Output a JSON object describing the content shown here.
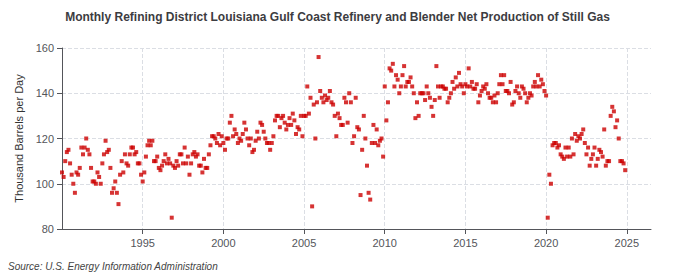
{
  "chart_data": {
    "type": "scatter",
    "title": "Monthly Refining District Louisiana Gulf Coast Refinery and Blender Net Production of Still Gas",
    "ylabel": "Thousand Barrels per Day",
    "source": "Source: U.S. Energy Information Administration",
    "color": "#CC0000",
    "marker": "square",
    "grid": true,
    "xlim": [
      1990.0,
      2026.5
    ],
    "xticks": [
      1995,
      2000,
      2005,
      2010,
      2015,
      2020,
      2025
    ],
    "ylim": [
      80,
      160
    ],
    "yticks": [
      80,
      100,
      120,
      140,
      160
    ],
    "x": [
      1990.0,
      1990.1,
      1990.2,
      1990.3,
      1990.4,
      1990.5,
      1990.6,
      1990.7,
      1990.8,
      1990.9,
      1991.0,
      1991.1,
      1991.2,
      1991.3,
      1991.4,
      1991.5,
      1991.6,
      1991.7,
      1991.8,
      1991.9,
      1992.0,
      1992.1,
      1992.2,
      1992.3,
      1992.4,
      1992.5,
      1992.6,
      1992.7,
      1992.8,
      1992.9,
      1993.0,
      1993.1,
      1993.2,
      1993.3,
      1993.4,
      1993.5,
      1993.6,
      1993.7,
      1993.8,
      1993.9,
      1994.0,
      1994.1,
      1994.2,
      1994.3,
      1994.4,
      1994.5,
      1994.6,
      1994.7,
      1994.8,
      1994.9,
      1995.0,
      1995.1,
      1995.2,
      1995.3,
      1995.4,
      1995.5,
      1995.6,
      1995.7,
      1995.8,
      1995.9,
      1996.0,
      1996.1,
      1996.2,
      1996.3,
      1996.4,
      1996.5,
      1996.6,
      1996.7,
      1996.8,
      1996.9,
      1997.0,
      1997.1,
      1997.2,
      1997.3,
      1997.4,
      1997.5,
      1997.6,
      1997.7,
      1997.8,
      1997.9,
      1998.0,
      1998.1,
      1998.2,
      1998.3,
      1998.4,
      1998.5,
      1998.6,
      1998.7,
      1998.8,
      1998.9,
      1999.0,
      1999.1,
      1999.2,
      1999.3,
      1999.4,
      1999.5,
      1999.6,
      1999.7,
      1999.8,
      1999.9,
      2000.0,
      2000.1,
      2000.2,
      2000.3,
      2000.4,
      2000.5,
      2000.6,
      2000.7,
      2000.8,
      2000.9,
      2001.0,
      2001.1,
      2001.2,
      2001.3,
      2001.4,
      2001.5,
      2001.6,
      2001.7,
      2001.8,
      2001.9,
      2002.0,
      2002.1,
      2002.2,
      2002.3,
      2002.4,
      2002.5,
      2002.6,
      2002.7,
      2002.8,
      2002.9,
      2003.0,
      2003.1,
      2003.2,
      2003.3,
      2003.4,
      2003.5,
      2003.6,
      2003.7,
      2003.8,
      2003.9,
      2004.0,
      2004.1,
      2004.2,
      2004.3,
      2004.4,
      2004.5,
      2004.6,
      2004.7,
      2004.8,
      2004.9,
      2005.0,
      2005.1,
      2005.2,
      2005.3,
      2005.4,
      2005.5,
      2005.6,
      2005.7,
      2005.8,
      2005.9,
      2006.0,
      2006.1,
      2006.2,
      2006.3,
      2006.4,
      2006.5,
      2006.6,
      2006.7,
      2006.8,
      2006.9,
      2007.0,
      2007.1,
      2007.2,
      2007.3,
      2007.4,
      2007.5,
      2007.6,
      2007.7,
      2007.8,
      2007.9,
      2008.0,
      2008.1,
      2008.2,
      2008.3,
      2008.4,
      2008.5,
      2008.6,
      2008.7,
      2008.8,
      2008.9,
      2009.0,
      2009.1,
      2009.2,
      2009.3,
      2009.4,
      2009.5,
      2009.6,
      2009.7,
      2009.8,
      2009.9,
      2010.0,
      2010.1,
      2010.2,
      2010.3,
      2010.4,
      2010.5,
      2010.6,
      2010.7,
      2010.8,
      2010.9,
      2011.0,
      2011.1,
      2011.2,
      2011.3,
      2011.4,
      2011.5,
      2011.6,
      2011.7,
      2011.8,
      2011.9,
      2012.0,
      2012.1,
      2012.2,
      2012.3,
      2012.4,
      2012.5,
      2012.6,
      2012.7,
      2012.8,
      2012.9,
      2013.0,
      2013.1,
      2013.2,
      2013.3,
      2013.4,
      2013.5,
      2013.6,
      2013.7,
      2013.8,
      2013.9,
      2014.0,
      2014.1,
      2014.2,
      2014.3,
      2014.4,
      2014.5,
      2014.6,
      2014.7,
      2014.8,
      2014.9,
      2015.0,
      2015.1,
      2015.2,
      2015.3,
      2015.4,
      2015.5,
      2015.6,
      2015.7,
      2015.8,
      2015.9,
      2016.0,
      2016.1,
      2016.2,
      2016.3,
      2016.4,
      2016.5,
      2016.6,
      2016.7,
      2016.8,
      2016.9,
      2017.0,
      2017.1,
      2017.2,
      2017.3,
      2017.4,
      2017.5,
      2017.6,
      2017.7,
      2017.8,
      2017.9,
      2018.0,
      2018.1,
      2018.2,
      2018.3,
      2018.4,
      2018.5,
      2018.6,
      2018.7,
      2018.8,
      2018.9,
      2019.0,
      2019.1,
      2019.2,
      2019.3,
      2019.4,
      2019.5,
      2019.6,
      2019.7,
      2019.8,
      2019.9,
      2020.0,
      2020.1,
      2020.2,
      2020.3,
      2020.4,
      2020.5,
      2020.6,
      2020.7,
      2020.8,
      2020.9,
      2021.0,
      2021.1,
      2021.2,
      2021.3,
      2021.4,
      2021.5,
      2021.6,
      2021.7,
      2021.8,
      2021.9,
      2022.0,
      2022.1,
      2022.2,
      2022.3,
      2022.4,
      2022.5,
      2022.6,
      2022.7,
      2022.8,
      2022.9,
      2023.0,
      2023.1,
      2023.2,
      2023.3,
      2023.4,
      2023.5,
      2023.6,
      2023.7,
      2023.8,
      2023.9,
      2024.0,
      2024.1,
      2024.2,
      2024.3,
      2024.4,
      2024.5,
      2024.6,
      2024.7,
      2024.8,
      2024.9
    ],
    "values": [
      105,
      103,
      110,
      114,
      115,
      109,
      104,
      100,
      96,
      105,
      104,
      107,
      116,
      113,
      116,
      120,
      115,
      113,
      107,
      101,
      101,
      100,
      105,
      103,
      100,
      109,
      113,
      119,
      114,
      115,
      107,
      96,
      98,
      101,
      96,
      91,
      104,
      110,
      105,
      113,
      109,
      108,
      113,
      116,
      116,
      113,
      114,
      109,
      109,
      104,
      101,
      105,
      112,
      117,
      119,
      117,
      119,
      110,
      110,
      112,
      107,
      106,
      108,
      110,
      113,
      109,
      111,
      109,
      85,
      108,
      107,
      110,
      108,
      113,
      113,
      109,
      116,
      109,
      112,
      104,
      109,
      113,
      114,
      112,
      113,
      108,
      108,
      105,
      111,
      107,
      107,
      113,
      117,
      121,
      121,
      120,
      118,
      122,
      117,
      121,
      118,
      115,
      120,
      120,
      127,
      130,
      121,
      124,
      122,
      118,
      120,
      119,
      122,
      127,
      124,
      120,
      117,
      120,
      114,
      115,
      119,
      123,
      120,
      127,
      126,
      123,
      120,
      118,
      118,
      115,
      118,
      121,
      128,
      130,
      130,
      125,
      129,
      130,
      127,
      124,
      126,
      129,
      126,
      131,
      128,
      122,
      125,
      124,
      130,
      121,
      130,
      130,
      143,
      131,
      138,
      90,
      135,
      120,
      136,
      156,
      141,
      138,
      136,
      139,
      137,
      138,
      141,
      136,
      135,
      130,
      121,
      131,
      129,
      126,
      126,
      138,
      136,
      127,
      140,
      136,
      118,
      121,
      138,
      125,
      124,
      95,
      115,
      130,
      120,
      108,
      96,
      93,
      118,
      126,
      118,
      124,
      117,
      119,
      120,
      112,
      143,
      128,
      136,
      151,
      150,
      153,
      143,
      148,
      146,
      140,
      143,
      148,
      152,
      143,
      145,
      145,
      147,
      143,
      140,
      129,
      136,
      130,
      140,
      140,
      140,
      137,
      143,
      140,
      138,
      134,
      130,
      137,
      152,
      143,
      138,
      143,
      143,
      142,
      142,
      136,
      138,
      140,
      145,
      142,
      147,
      143,
      149,
      144,
      143,
      140,
      144,
      143,
      151,
      143,
      145,
      142,
      142,
      144,
      136,
      139,
      141,
      143,
      142,
      144,
      140,
      138,
      138,
      136,
      139,
      136,
      140,
      144,
      148,
      144,
      148,
      141,
      141,
      140,
      145,
      135,
      136,
      141,
      143,
      140,
      138,
      143,
      142,
      140,
      136,
      138,
      140,
      139,
      143,
      145,
      143,
      148,
      143,
      146,
      144,
      141,
      139,
      85,
      104,
      100,
      117,
      118,
      118,
      116,
      117,
      113,
      112,
      111,
      116,
      112,
      116,
      112,
      120,
      113,
      122,
      119,
      121,
      120,
      122,
      124,
      118,
      113,
      116,
      108,
      111,
      113,
      116,
      108,
      111,
      115,
      114,
      112,
      124,
      108,
      110,
      110,
      130,
      134,
      132,
      125,
      128,
      120,
      110,
      110,
      109,
      106
    ]
  }
}
